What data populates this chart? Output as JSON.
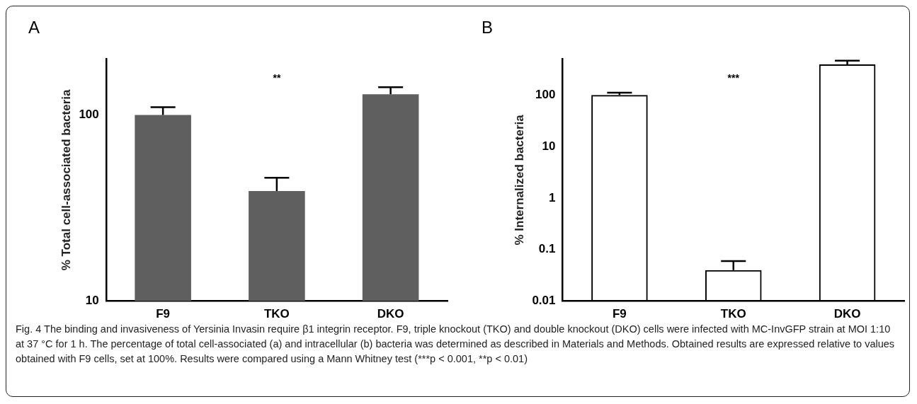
{
  "chart_data": [
    {
      "type": "bar",
      "title": "A",
      "ylabel": "% Total cell-associated bacteria",
      "categories": [
        "F9",
        "TKO",
        "DKO"
      ],
      "series": [
        {
          "color": "#5f5f5f",
          "values": [
            100,
            39,
            129
          ],
          "errors": [
            [
              100,
              110
            ],
            [
              39,
              46
            ],
            [
              129,
              141
            ]
          ]
        }
      ],
      "log": "y",
      "ylim": [
        10,
        200
      ],
      "yticks": [
        10,
        100
      ],
      "grid": false,
      "legend": false,
      "annotations": [
        "**"
      ]
    },
    {
      "type": "bar",
      "title": "B",
      "ylabel": "% Internalized bacteria",
      "categories": [
        "F9",
        "TKO",
        "DKO"
      ],
      "series": [
        {
          "color": "#000000",
          "values": [
            100,
            0.04,
            390
          ],
          "errors": [
            [
              100,
              110
            ],
            [
              0.04,
              0.06
            ],
            [
              390,
              460
            ]
          ]
        }
      ],
      "log": "y",
      "ylim": [
        0.01,
        500
      ],
      "yticks": [
        0.01,
        0.1,
        1,
        10,
        100
      ],
      "grid": false,
      "legend": false,
      "annotations": [
        "***",
        "Fig. 4 The binding and invasiveness of Yersinia Invasin require β1 integrin receptor. F9, triple knockout (TKO) and double knockout (DKO) cells were infected with MC-InvGFP strain at MOI 1:10 at 37 °C for 1 h. The percentage of total cell-associated (a) and intracellular (b) bacteria was determined as described in Materials and Methods. Obtained results are expressed relative to values obtained with F9 cells, set at 100%. Results were compared using a Mann Whitney test (***p < 0.001, **p < 0.01)"
      ]
    }
  ]
}
